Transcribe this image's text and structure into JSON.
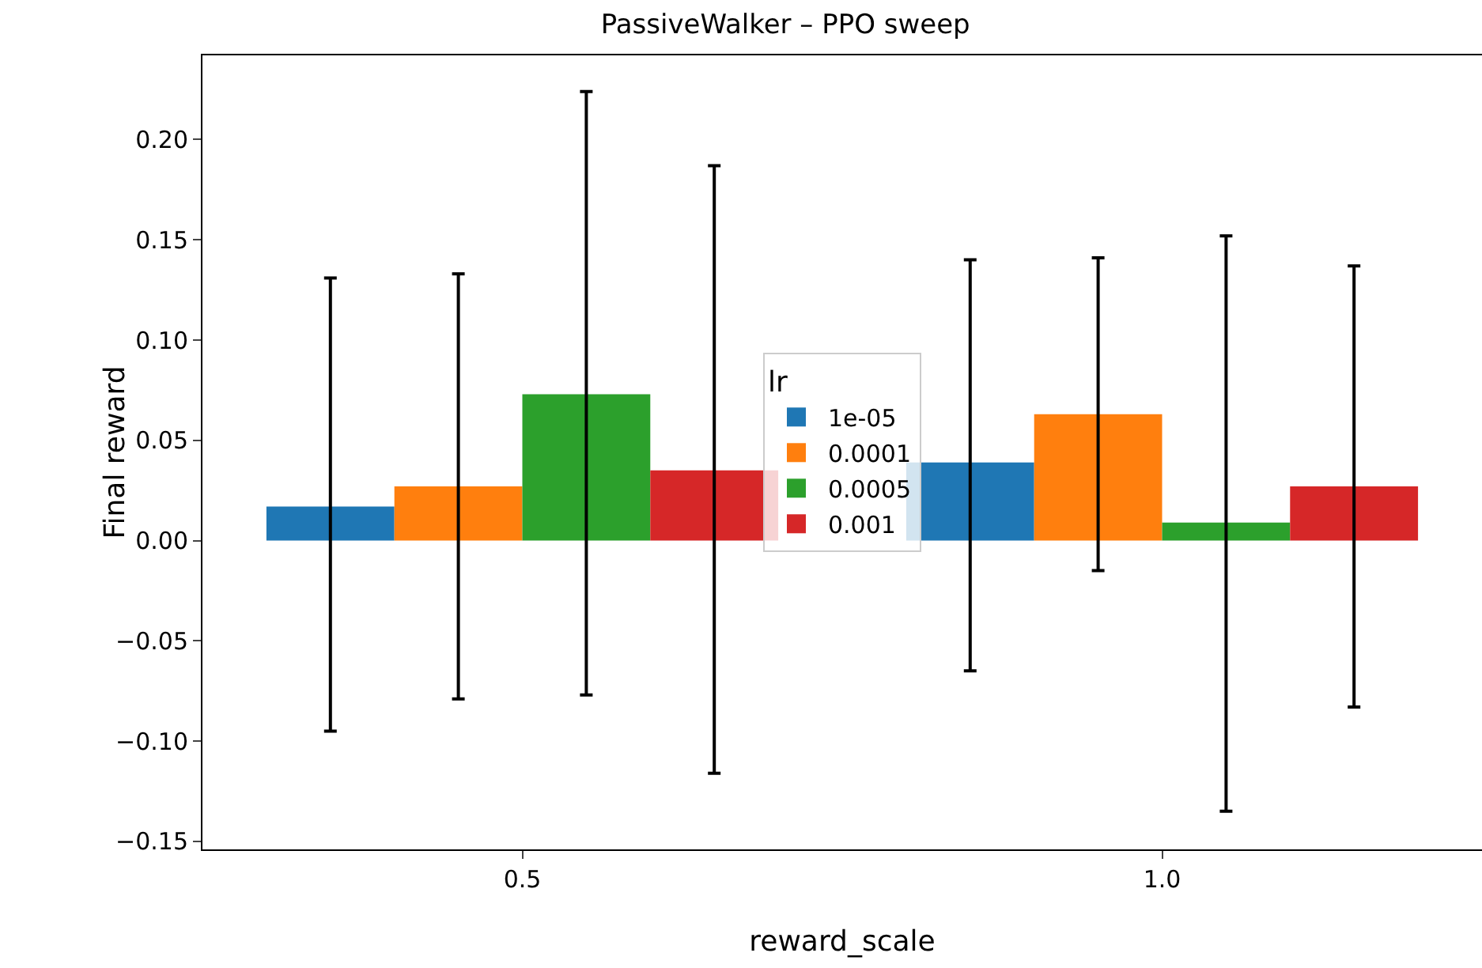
{
  "chart_data": {
    "type": "bar",
    "title": "PassiveWalker – PPO sweep",
    "xlabel": "reward_scale",
    "ylabel": "Final reward",
    "legend_title": "lr",
    "legend": "center",
    "grid": false,
    "categories": [
      "0.5",
      "1.0"
    ],
    "ylim": [
      -0.154,
      0.242
    ],
    "yticks": [
      {
        "value": -0.15,
        "label": "−0.15"
      },
      {
        "value": -0.1,
        "label": "−0.10"
      },
      {
        "value": -0.05,
        "label": "−0.05"
      },
      {
        "value": 0,
        "label": "0.00"
      },
      {
        "value": 0.05,
        "label": "0.05"
      },
      {
        "value": 0.1,
        "label": "0.10"
      },
      {
        "value": 0.15,
        "label": "0.15"
      },
      {
        "value": 0.2,
        "label": "0.20"
      }
    ],
    "series": [
      {
        "name": "1e-05",
        "color": "#1f77b4",
        "values": [
          0.017,
          0.039
        ],
        "errors": [
          [
            -0.095,
            0.131
          ],
          [
            -0.065,
            0.14
          ]
        ]
      },
      {
        "name": "0.0001",
        "color": "#ff7f0e",
        "values": [
          0.027,
          0.063
        ],
        "errors": [
          [
            -0.079,
            0.133
          ],
          [
            -0.015,
            0.141
          ]
        ]
      },
      {
        "name": "0.0005",
        "color": "#2ca02c",
        "values": [
          0.073,
          0.009
        ],
        "errors": [
          [
            -0.077,
            0.224
          ],
          [
            -0.135,
            0.152
          ]
        ]
      },
      {
        "name": "0.001",
        "color": "#d62728",
        "values": [
          0.035,
          0.027
        ],
        "errors": [
          [
            -0.116,
            0.187
          ],
          [
            -0.083,
            0.137
          ]
        ]
      }
    ]
  }
}
